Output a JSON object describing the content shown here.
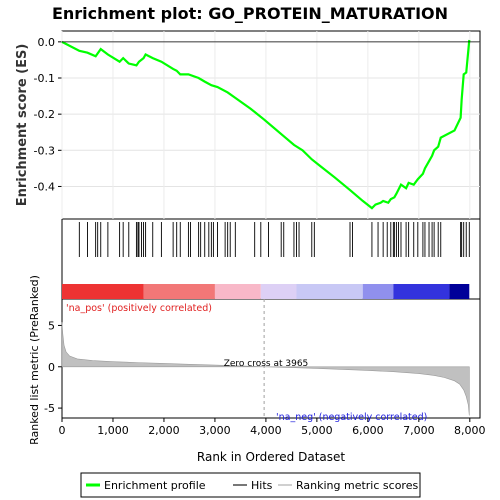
{
  "chart_data": {
    "type": "line",
    "title": "Enrichment plot: GO_PROTEIN_MATURATION",
    "xlabel": "Rank in Ordered Dataset",
    "es_panel": {
      "ylabel": "Enrichment score (ES)",
      "ylim": [
        -0.49,
        0.03
      ],
      "yticks": [
        "0.0",
        "-0.1",
        "-0.2",
        "-0.3",
        "-0.4"
      ],
      "ytick_values": [
        0.0,
        -0.1,
        -0.2,
        -0.3,
        -0.4
      ],
      "series": [
        {
          "name": "Enrichment profile",
          "color": "#00ff00",
          "x": [
            0,
            340,
            500,
            660,
            760,
            900,
            1130,
            1200,
            1310,
            1460,
            1510,
            1600,
            1640,
            1780,
            1950,
            2180,
            2250,
            2320,
            2480,
            2680,
            2800,
            2930,
            3050,
            3250,
            3400,
            3700,
            3965,
            4300,
            4550,
            4720,
            4900,
            5080,
            5350,
            5650,
            5900,
            6080,
            6150,
            6250,
            6300,
            6400,
            6450,
            6520,
            6560,
            6650,
            6750,
            6800,
            6900,
            6980,
            7080,
            7120,
            7200,
            7260,
            7300,
            7380,
            7430,
            7700,
            7820,
            7840,
            7880,
            7930,
            7990
          ],
          "y": [
            0.0,
            -0.025,
            -0.03,
            -0.04,
            -0.02,
            -0.035,
            -0.055,
            -0.045,
            -0.06,
            -0.065,
            -0.055,
            -0.045,
            -0.035,
            -0.045,
            -0.055,
            -0.075,
            -0.08,
            -0.09,
            -0.09,
            -0.1,
            -0.11,
            -0.12,
            -0.125,
            -0.14,
            -0.155,
            -0.185,
            -0.215,
            -0.255,
            -0.285,
            -0.3,
            -0.325,
            -0.345,
            -0.375,
            -0.41,
            -0.44,
            -0.46,
            -0.45,
            -0.445,
            -0.44,
            -0.445,
            -0.435,
            -0.43,
            -0.42,
            -0.395,
            -0.405,
            -0.39,
            -0.395,
            -0.38,
            -0.365,
            -0.35,
            -0.33,
            -0.315,
            -0.3,
            -0.29,
            -0.265,
            -0.245,
            -0.21,
            -0.16,
            -0.09,
            -0.085,
            0.005
          ]
        }
      ]
    },
    "hits_panel": {
      "legend_name": "Hits",
      "hit_ranks": [
        340,
        500,
        660,
        700,
        760,
        900,
        1130,
        1200,
        1310,
        1460,
        1490,
        1510,
        1560,
        1600,
        1640,
        1780,
        1950,
        2180,
        2250,
        2320,
        2480,
        2520,
        2680,
        2720,
        2800,
        2880,
        2930,
        2970,
        3050,
        3200,
        3250,
        3300,
        3400,
        3780,
        3900,
        4050,
        4300,
        4350,
        4550,
        4600,
        4650,
        4900,
        4950,
        5650,
        5700,
        6080,
        6200,
        6300,
        6380,
        6450,
        6500,
        6520,
        6560,
        6600,
        6650,
        6750,
        6800,
        6900,
        6980,
        7080,
        7120,
        7200,
        7260,
        7300,
        7380,
        7430,
        7820,
        7840,
        7880,
        7930,
        7990
      ],
      "color_band": [
        "#ee3333",
        "#f27777",
        "#f8b8c8",
        "#ddd0f5",
        "#c8c8f5",
        "#9090ee",
        "#3333dd",
        "#000099"
      ],
      "color_band_stops": [
        0,
        1600,
        3000,
        3900,
        4600,
        5900,
        6500,
        7600,
        8000
      ]
    },
    "metric_panel": {
      "legend_name": "Ranking metric scores",
      "ylabel": "Ranked list metric (PreRanked)",
      "ylim": [
        -6.2,
        8.2
      ],
      "yticks": [
        "5",
        "0",
        "-5"
      ],
      "ytick_values": [
        5,
        0,
        -5
      ],
      "zero_cross_label": "Zero cross at 3965",
      "zero_cross": 3965,
      "pos_label": "'na_pos' (positively correlated)",
      "neg_label": "'na_neg' (negatively correlated)",
      "curve_x": [
        0,
        15,
        40,
        80,
        150,
        300,
        600,
        1000,
        1500,
        2000,
        2500,
        3000,
        3500,
        3965,
        4500,
        5000,
        5500,
        6000,
        6500,
        7000,
        7300,
        7500,
        7700,
        7800,
        7880,
        7930,
        7970,
        7990
      ],
      "curve_y": [
        5.4,
        4.0,
        2.6,
        1.8,
        1.3,
        0.95,
        0.75,
        0.62,
        0.5,
        0.4,
        0.3,
        0.2,
        0.1,
        0.0,
        -0.1,
        -0.2,
        -0.32,
        -0.45,
        -0.6,
        -0.82,
        -1.05,
        -1.3,
        -1.7,
        -2.1,
        -2.8,
        -3.6,
        -4.6,
        -5.9
      ]
    },
    "xlim": [
      0,
      8200
    ],
    "xticks": [
      "0",
      "1,000",
      "2,000",
      "3,000",
      "4,000",
      "5,000",
      "6,000",
      "7,000",
      "8,000"
    ],
    "xtick_values": [
      0,
      1000,
      2000,
      3000,
      4000,
      5000,
      6000,
      7000,
      8000
    ],
    "legend": {
      "placement": "bottom",
      "items": [
        "Enrichment profile",
        "Hits",
        "Ranking metric scores"
      ]
    }
  }
}
